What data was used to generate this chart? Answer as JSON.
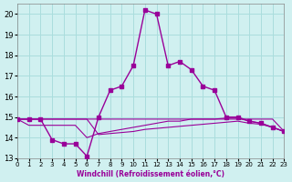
{
  "xlabel": "Windchill (Refroidissement éolien,°C)",
  "background_color": "#d0f0f0",
  "grid_color": "#aadddd",
  "line_color": "#990099",
  "xlim": [
    0,
    23
  ],
  "ylim": [
    13,
    20.5
  ],
  "yticks": [
    13,
    14,
    15,
    16,
    17,
    18,
    19,
    20
  ],
  "xticks": [
    0,
    1,
    2,
    3,
    4,
    5,
    6,
    7,
    8,
    9,
    10,
    11,
    12,
    13,
    14,
    15,
    16,
    17,
    18,
    19,
    20,
    21,
    22,
    23
  ],
  "line1_x": [
    0,
    1,
    2,
    3,
    4,
    5,
    6,
    7,
    8,
    9,
    10,
    11,
    12,
    13,
    14,
    15,
    16,
    17,
    18,
    19,
    20,
    21,
    22,
    23
  ],
  "line1_y": [
    14.9,
    14.9,
    14.9,
    13.9,
    13.7,
    13.7,
    13.1,
    15.0,
    16.3,
    16.5,
    17.5,
    20.2,
    20.0,
    17.5,
    17.7,
    17.3,
    16.5,
    16.3,
    15.0,
    15.0,
    14.8,
    14.7,
    14.5,
    14.3
  ],
  "line2_x": [
    0,
    1,
    2,
    3,
    4,
    5,
    6,
    7,
    8,
    9,
    10,
    11,
    12,
    13,
    14,
    15,
    16,
    17,
    18,
    19,
    20,
    21,
    22,
    23
  ],
  "line2_y": [
    14.9,
    14.6,
    14.6,
    14.6,
    14.6,
    14.6,
    14.0,
    14.2,
    14.3,
    14.4,
    14.5,
    14.6,
    14.7,
    14.8,
    14.8,
    14.9,
    14.9,
    14.9,
    14.95,
    14.95,
    14.8,
    14.7,
    14.5,
    14.3
  ],
  "line3_x": [
    0,
    1,
    2,
    3,
    4,
    5,
    6,
    7,
    8,
    9,
    10,
    11,
    12,
    13,
    14,
    15,
    16,
    17,
    18,
    19,
    20,
    21,
    22,
    23
  ],
  "line3_y": [
    14.9,
    14.9,
    14.9,
    14.9,
    14.9,
    14.9,
    14.9,
    14.9,
    14.9,
    14.9,
    14.9,
    14.9,
    14.9,
    14.9,
    14.9,
    14.9,
    14.9,
    14.9,
    14.9,
    14.9,
    14.9,
    14.9,
    14.9,
    14.3
  ],
  "line4_x": [
    0,
    1,
    2,
    3,
    4,
    5,
    6,
    7,
    8,
    9,
    10,
    11,
    12,
    13,
    14,
    15,
    16,
    17,
    18,
    19,
    20,
    21,
    22,
    23
  ],
  "line4_y": [
    14.9,
    14.9,
    14.9,
    14.9,
    14.9,
    14.9,
    14.9,
    14.15,
    14.2,
    14.25,
    14.3,
    14.4,
    14.45,
    14.5,
    14.55,
    14.6,
    14.65,
    14.7,
    14.75,
    14.8,
    14.7,
    14.65,
    14.5,
    14.3
  ]
}
